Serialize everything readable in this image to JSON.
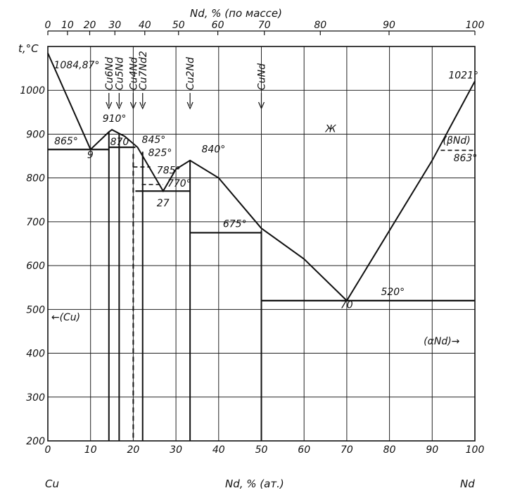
{
  "chart_data": {
    "type": "phase-diagram",
    "title": "",
    "top_axis_label": "Nd, % (по массе)",
    "bottom_axis_label": "Nd, % (ат.)",
    "y_axis_label": "t,°C",
    "bottom_left_element": "Cu",
    "bottom_right_element": "Nd",
    "xlim": [
      0,
      100
    ],
    "ylim": [
      200,
      1100
    ],
    "x_ticks": [
      0,
      10,
      20,
      30,
      40,
      50,
      60,
      70,
      80,
      90,
      100
    ],
    "y_ticks": [
      200,
      300,
      400,
      500,
      600,
      700,
      800,
      900,
      1000
    ],
    "top_ticks": [
      {
        "label": "0",
        "at": 0
      },
      {
        "label": "10",
        "at": 4.6
      },
      {
        "label": "20",
        "at": 9.8
      },
      {
        "label": "30",
        "at": 15.7
      },
      {
        "label": "40",
        "at": 22.7
      },
      {
        "label": "50",
        "at": 30.6
      },
      {
        "label": "60",
        "at": 39.8
      },
      {
        "label": "70",
        "at": 50.7
      },
      {
        "label": "80",
        "at": 63.8
      },
      {
        "label": "90",
        "at": 79.9
      },
      {
        "label": "100",
        "at": 100
      }
    ],
    "compounds": [
      {
        "label": "Cu6Nd",
        "x": 14.3,
        "dashed": false,
        "arrow": true
      },
      {
        "label": "Cu5Nd",
        "x": 16.7,
        "dashed": false,
        "arrow": true
      },
      {
        "label": "Cu4Nd",
        "x": 20,
        "dashed": true,
        "arrow": true
      },
      {
        "label": "Cu7Nd2",
        "x": 22.2,
        "dashed": false,
        "arrow": true
      },
      {
        "label": "Cu2Nd",
        "x": 33.3,
        "dashed": false,
        "arrow": true
      },
      {
        "label": "CuNd",
        "x": 50,
        "dashed": false,
        "arrow": true
      }
    ],
    "liquidus_points": [
      {
        "x": 0,
        "t": 1084.87
      },
      {
        "x": 10,
        "t": 865
      },
      {
        "x": 14.3,
        "t": 905
      },
      {
        "x": 15,
        "t": 910
      },
      {
        "x": 18,
        "t": 895
      },
      {
        "x": 21,
        "t": 870
      },
      {
        "x": 27,
        "t": 770
      },
      {
        "x": 30,
        "t": 820
      },
      {
        "x": 33.3,
        "t": 840
      },
      {
        "x": 40,
        "t": 800
      },
      {
        "x": 50,
        "t": 685
      },
      {
        "x": 60,
        "t": 615
      },
      {
        "x": 70,
        "t": 520
      },
      {
        "x": 80,
        "t": 680
      },
      {
        "x": 90,
        "t": 840
      },
      {
        "x": 100,
        "t": 1021
      }
    ],
    "solid_lines": [
      {
        "x1": 0,
        "x2": 14.3,
        "t": 865
      },
      {
        "x1": 14.3,
        "x2": 20.5,
        "t": 870
      },
      {
        "x1": 20.5,
        "x2": 33.3,
        "t": 770
      },
      {
        "x1": 33.3,
        "x2": 50,
        "t": 675
      },
      {
        "x1": 50,
        "x2": 100,
        "t": 520
      }
    ],
    "dashed_lines": [
      {
        "x1": 22,
        "x2": 27,
        "t": 785
      },
      {
        "x1": 20,
        "x2": 24,
        "t": 825
      },
      {
        "x1": 92,
        "x2": 100,
        "t": 863
      }
    ],
    "labels": [
      {
        "text": "1084,87°",
        "x": 1.4,
        "t": 1050
      },
      {
        "text": "865°",
        "x": 1.5,
        "t": 877
      },
      {
        "text": "9",
        "x": 9.2,
        "t": 845
      },
      {
        "text": "910°",
        "x": 12.8,
        "t": 928
      },
      {
        "text": "870",
        "x": 14.6,
        "t": 875
      },
      {
        "text": "845°",
        "x": 22,
        "t": 880
      },
      {
        "text": "825°",
        "x": 23.5,
        "t": 850
      },
      {
        "text": "785°",
        "x": 25.5,
        "t": 810
      },
      {
        "text": "770°",
        "x": 28,
        "t": 780
      },
      {
        "text": "27",
        "x": 25.5,
        "t": 735
      },
      {
        "text": "840°",
        "x": 36,
        "t": 858
      },
      {
        "text": "675°",
        "x": 41,
        "t": 688
      },
      {
        "text": "Ж",
        "x": 65,
        "t": 905
      },
      {
        "text": "1021°",
        "x": 93.8,
        "t": 1027
      },
      {
        "text": "(βNd)",
        "x": 92.5,
        "t": 878
      },
      {
        "text": "863°",
        "x": 95,
        "t": 838
      },
      {
        "text": "520°",
        "x": 78,
        "t": 533
      },
      {
        "text": "70",
        "x": 68.5,
        "t": 503
      },
      {
        "text": "←(Cu)",
        "x": 0.8,
        "t": 475
      },
      {
        "text": "(αNd)→",
        "x": 88,
        "t": 420
      }
    ]
  }
}
